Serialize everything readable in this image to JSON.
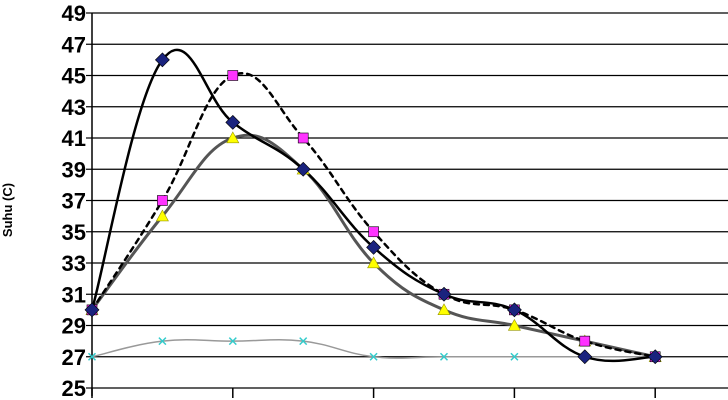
{
  "chart_data": {
    "type": "line",
    "ylabel": "Suhu (C)",
    "xlabel": "",
    "ylim": [
      25,
      49
    ],
    "yticks": [
      25,
      27,
      29,
      31,
      33,
      35,
      37,
      39,
      41,
      43,
      45,
      47,
      49
    ],
    "x": [
      0,
      1,
      2,
      3,
      4,
      5,
      6,
      7,
      8
    ],
    "xticks_shown_at": [
      0,
      2,
      4,
      6,
      8,
      10
    ],
    "grid": "horizontal",
    "legend": "none",
    "series": [
      {
        "x": [
          0,
          1,
          2,
          3,
          4,
          5,
          6,
          7,
          8
        ],
        "values": [
          30,
          46,
          42,
          39,
          34,
          31,
          30,
          27,
          27
        ],
        "color": "#000000",
        "line_style": "solid",
        "line_width": 2.5,
        "marker": "diamond",
        "marker_color": "#1a237e"
      },
      {
        "x": [
          0,
          1,
          2,
          3,
          4,
          5,
          6,
          7,
          8
        ],
        "values": [
          30,
          37,
          45,
          41,
          35,
          31,
          30,
          28,
          27
        ],
        "color": "#000000",
        "line_style": "dashed",
        "line_width": 2.5,
        "marker": "square",
        "marker_color": "#ff33ff"
      },
      {
        "x": [
          0,
          1,
          2,
          3,
          4,
          5,
          6,
          7,
          8
        ],
        "values": [
          30,
          36,
          41,
          39,
          33,
          30,
          29,
          28,
          27
        ],
        "color": "#555555",
        "line_style": "solid",
        "line_width": 3,
        "marker": "triangle",
        "marker_color": "#ffff00"
      },
      {
        "x": [
          0,
          1,
          2,
          3,
          4,
          5,
          6,
          7,
          8
        ],
        "values": [
          27,
          28,
          28,
          28,
          27,
          27,
          27,
          27,
          27
        ],
        "color": "#999999",
        "line_style": "solid",
        "line_width": 1.5,
        "marker": "x",
        "marker_color": "#33cccc"
      }
    ]
  }
}
